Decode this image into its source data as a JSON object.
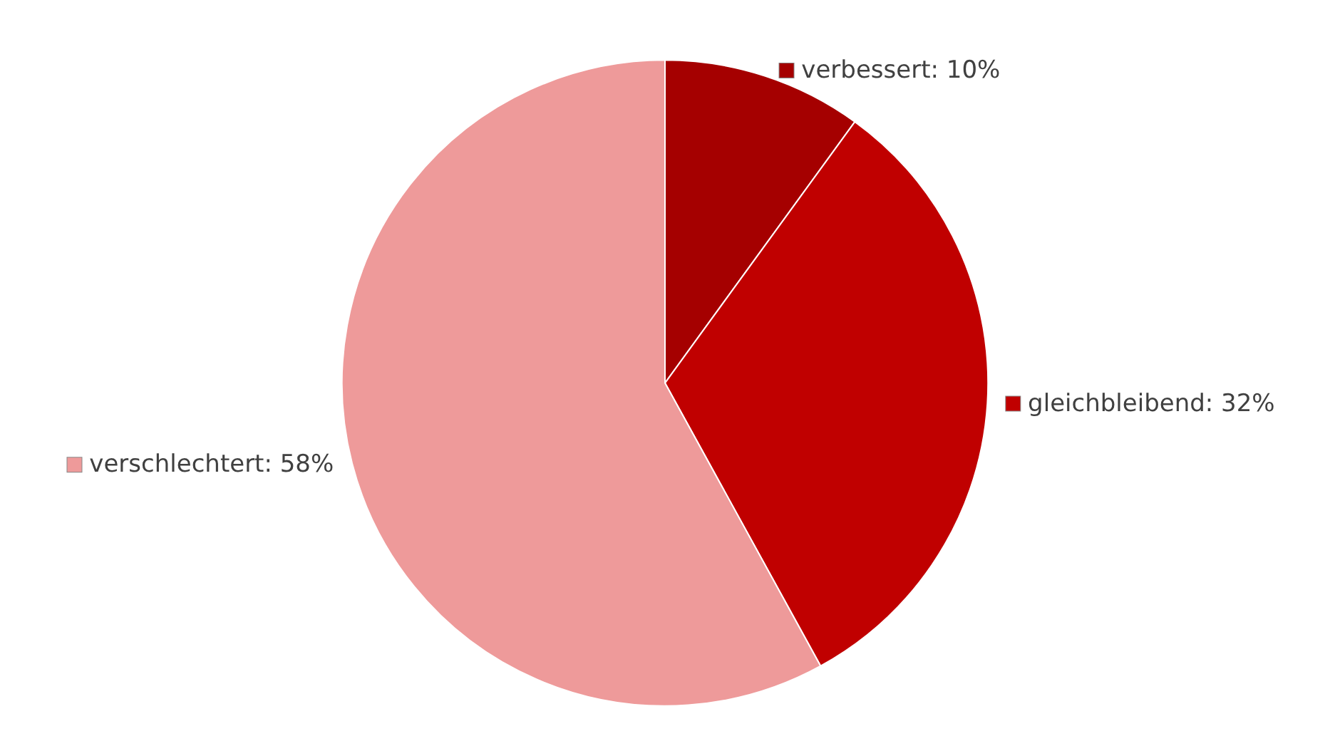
{
  "chart_data": {
    "type": "pie",
    "categories": [
      "verbessert",
      "gleichbleibend",
      "verschlechtert"
    ],
    "values": [
      10,
      32,
      58
    ],
    "colors": [
      "#a50000",
      "#c00000",
      "#ee9a9a"
    ],
    "value_labels": [
      "10%",
      "32%",
      "58%"
    ],
    "legend": "right"
  }
}
